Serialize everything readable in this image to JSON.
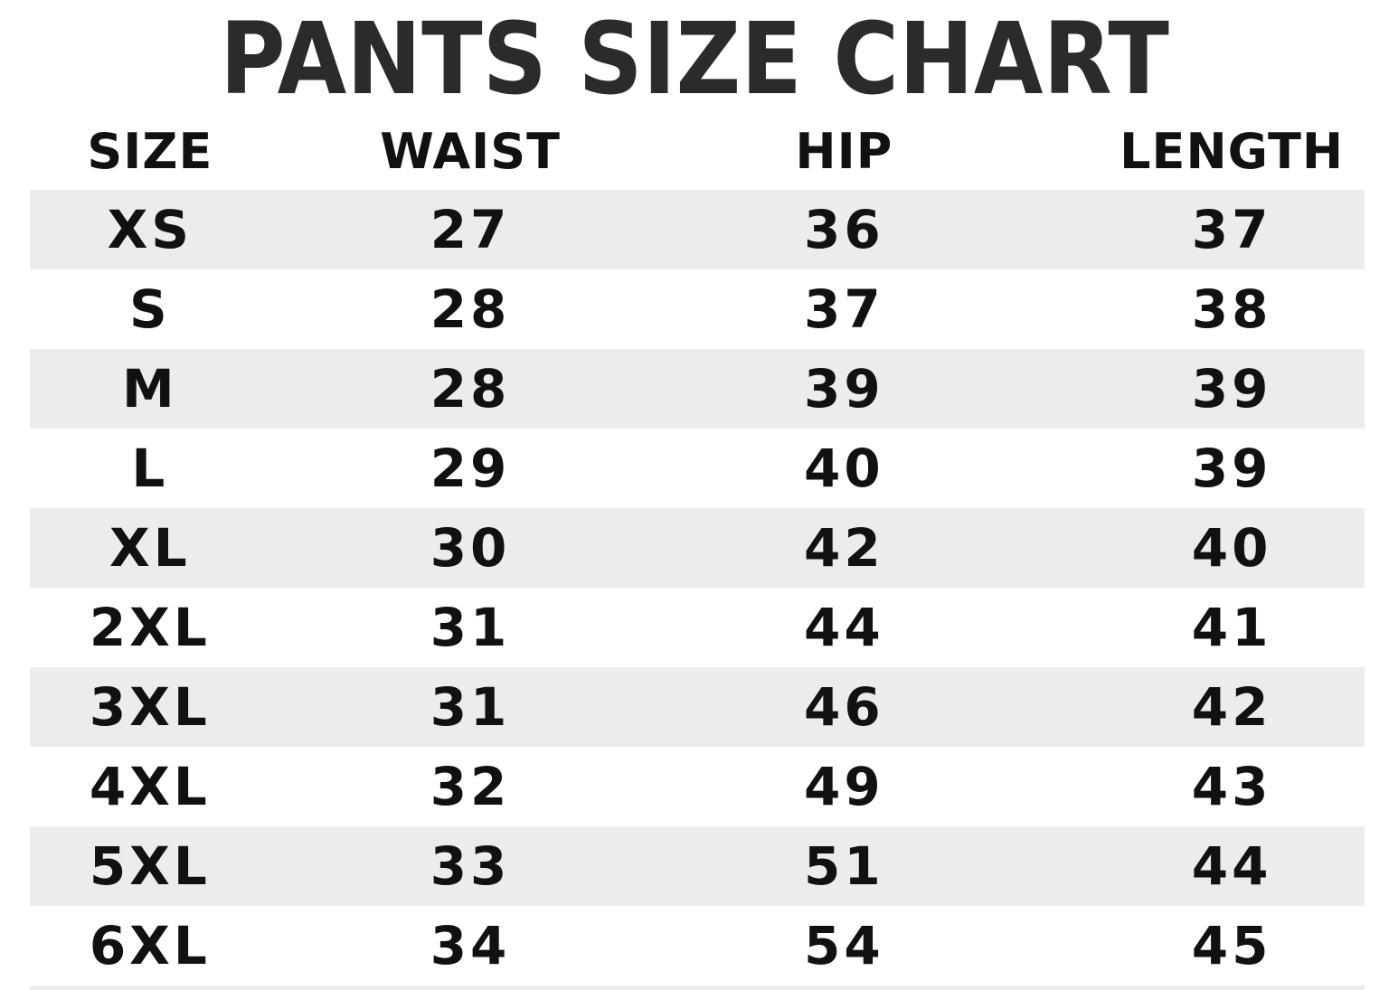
{
  "title": "PANTS SIZE CHART",
  "colors": {
    "background": "#ffffff",
    "stripe": "#ececec",
    "body_text": "#111111",
    "title_text": "#2b2b2b"
  },
  "chart_data": {
    "type": "table",
    "title": "PANTS SIZE CHART",
    "columns": [
      "SIZE",
      "WAIST",
      "HIP",
      "LENGTH"
    ],
    "rows": [
      [
        "XS",
        "27",
        "36",
        "37"
      ],
      [
        "S",
        "28",
        "37",
        "38"
      ],
      [
        "M",
        "28",
        "39",
        "39"
      ],
      [
        "L",
        "29",
        "40",
        "39"
      ],
      [
        "XL",
        "30",
        "42",
        "40"
      ],
      [
        "2XL",
        "31",
        "44",
        "41"
      ],
      [
        "3XL",
        "31",
        "46",
        "42"
      ],
      [
        "4XL",
        "32",
        "49",
        "43"
      ],
      [
        "5XL",
        "33",
        "51",
        "44"
      ],
      [
        "6XL",
        "34",
        "54",
        "45"
      ]
    ],
    "layout": {
      "striped_rows": "alternating starting with first data row",
      "stripe_color": "#ececec",
      "legend": "none",
      "grid": "off"
    }
  }
}
